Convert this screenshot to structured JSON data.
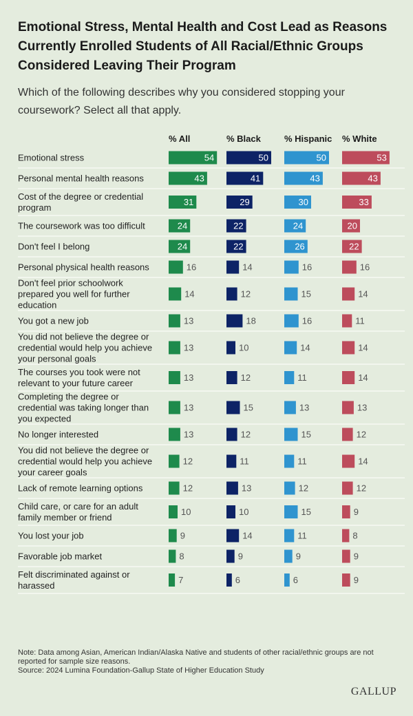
{
  "header": {
    "title": "Emotional Stress, Mental Health and Cost Lead as Reasons Currently Enrolled Students of All Racial/Ethnic Groups Considered Leaving Their Program",
    "subtitle": "Which of the following describes why you considered stopping your coursework? Select all that apply."
  },
  "chart_data": {
    "type": "bar",
    "orientation": "horizontal",
    "grouped_as": "small-multiples",
    "value_labels": true,
    "categories": [
      [
        "Emotional stress"
      ],
      [
        "Personal mental health reasons"
      ],
      [
        "Cost of the degree or credential",
        "program"
      ],
      [
        "The coursework was too difficult"
      ],
      [
        "Don't feel I belong"
      ],
      [
        "Personal physical health reasons"
      ],
      [
        "Don't feel prior schoolwork",
        "prepared you well for further",
        "education"
      ],
      [
        "You got a new job"
      ],
      [
        "You did not believe the degree or",
        "credential would help you achieve",
        "your personal goals"
      ],
      [
        "The courses you took were not",
        "relevant to your future career"
      ],
      [
        "Completing the degree or",
        "credential was taking longer than",
        "you expected"
      ],
      [
        "No longer interested"
      ],
      [
        "You did not believe the degree or",
        "credential would help you achieve",
        "your career goals"
      ],
      [
        "Lack of remote learning options"
      ],
      [
        "Child care, or care for an adult",
        "family member or friend"
      ],
      [
        "You lost your job"
      ],
      [
        "Favorable job market"
      ],
      [
        "Felt discriminated against or",
        "harassed"
      ]
    ],
    "series": [
      {
        "name": "% All",
        "color": "#1e8a4c",
        "values": [
          54,
          43,
          31,
          24,
          24,
          16,
          14,
          13,
          13,
          13,
          13,
          13,
          12,
          12,
          10,
          9,
          8,
          7
        ]
      },
      {
        "name": "% Black",
        "color": "#0d2366",
        "values": [
          50,
          41,
          29,
          22,
          22,
          14,
          12,
          18,
          10,
          12,
          15,
          12,
          11,
          13,
          10,
          14,
          9,
          6
        ]
      },
      {
        "name": "% Hispanic",
        "color": "#2f94cf",
        "values": [
          50,
          43,
          30,
          24,
          26,
          16,
          15,
          16,
          14,
          11,
          13,
          15,
          11,
          12,
          15,
          11,
          9,
          6
        ]
      },
      {
        "name": "% White",
        "color": "#bd4c5c",
        "values": [
          53,
          43,
          33,
          20,
          22,
          16,
          14,
          11,
          14,
          14,
          13,
          12,
          14,
          12,
          9,
          8,
          9,
          9
        ]
      }
    ]
  },
  "footer": {
    "note": "Note: Data among Asian, American Indian/Alaska Native and students of other racial/ethnic groups are not reported for sample size reasons.",
    "source": "Source: 2024 Lumina Foundation-Gallup State of Higher Education Study",
    "logo_text": "GALLUP"
  }
}
